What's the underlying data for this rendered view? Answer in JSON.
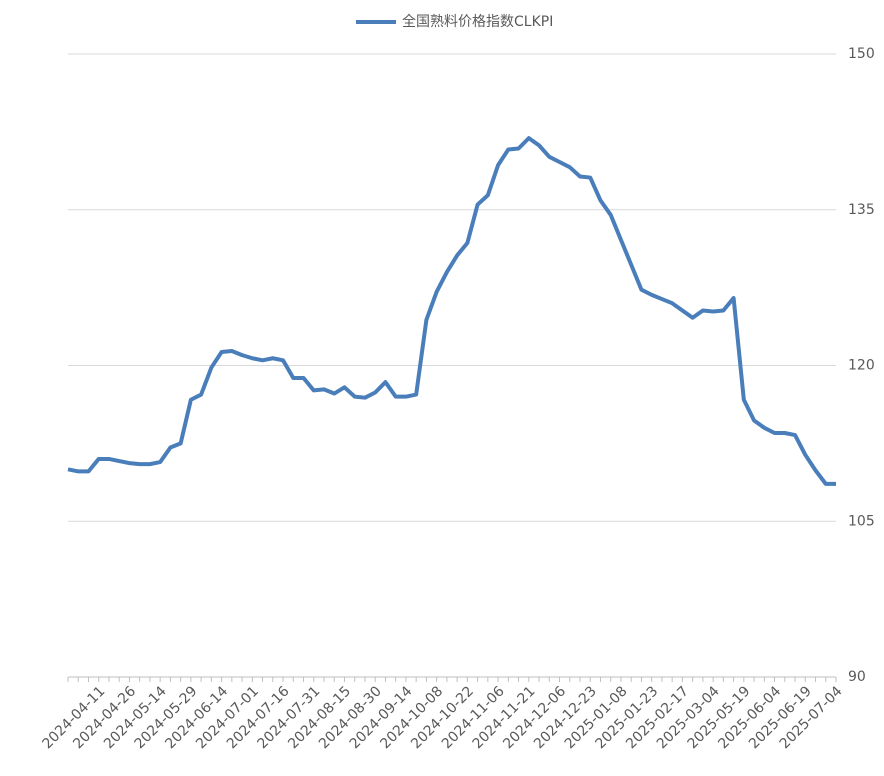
{
  "chart_data": {
    "type": "line",
    "categories": [
      null,
      null,
      null,
      "2024-04-11",
      null,
      null,
      "2024-04-26",
      null,
      null,
      "2024-05-14",
      null,
      null,
      "2024-05-29",
      null,
      null,
      "2024-06-14",
      null,
      null,
      "2024-07-01",
      null,
      null,
      "2024-07-16",
      null,
      null,
      "2024-07-31",
      null,
      null,
      "2024-08-15",
      null,
      null,
      "2024-08-30",
      null,
      null,
      "2024-09-14",
      null,
      null,
      "2024-10-08",
      null,
      null,
      "2024-10-22",
      null,
      null,
      "2024-11-06",
      null,
      null,
      "2024-11-21",
      null,
      null,
      "2024-12-06",
      null,
      null,
      "2024-12-23",
      null,
      null,
      "2025-01-08",
      null,
      null,
      "2025-01-23",
      null,
      null,
      "2025-02-17",
      null,
      null,
      "2025-03-04",
      null,
      null,
      "2025-05-19",
      null,
      null,
      "2025-06-04",
      null,
      null,
      "2025-06-19",
      null,
      null,
      "2025-07-04"
    ],
    "series": [
      {
        "name": "全国熟料价格指数CLKPI",
        "color": "#4a7ebb",
        "values": [
          110.0,
          109.8,
          109.8,
          111.0,
          111.0,
          110.8,
          110.6,
          110.5,
          110.5,
          110.7,
          112.1,
          112.5,
          116.7,
          117.2,
          119.8,
          121.3,
          121.4,
          121.0,
          120.7,
          120.5,
          120.7,
          120.5,
          118.8,
          118.8,
          117.6,
          117.7,
          117.3,
          117.9,
          117.0,
          116.9,
          117.4,
          118.4,
          117.0,
          117.0,
          117.2,
          124.4,
          127.1,
          129.0,
          130.6,
          131.8,
          135.5,
          136.4,
          139.3,
          140.8,
          140.9,
          141.9,
          141.2,
          140.1,
          139.6,
          139.1,
          138.2,
          138.1,
          135.9,
          134.5,
          132.1,
          129.7,
          127.3,
          126.8,
          126.4,
          126.0,
          125.3,
          124.6,
          125.3,
          125.2,
          125.3,
          126.5,
          116.7,
          114.7,
          114.0,
          113.5,
          113.5,
          113.3,
          111.4,
          109.9,
          108.6,
          108.6
        ]
      }
    ],
    "ylim": [
      90,
      150
    ],
    "yticks": [
      90,
      105,
      120,
      135,
      150
    ],
    "grid": true,
    "legend": "top"
  }
}
